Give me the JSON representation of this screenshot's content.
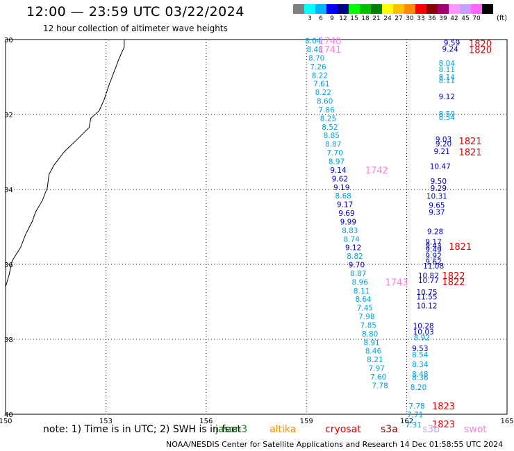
{
  "header": {
    "title": "12:00 — 23:59 UTC 03/22/2024",
    "subtitle": "12 hour collection of altimeter wave heights"
  },
  "colorbar": {
    "colors": [
      "#808080",
      "#00ffff",
      "#00b4ff",
      "#0000ff",
      "#00008b",
      "#00ff00",
      "#00c000",
      "#008000",
      "#ffff00",
      "#ffc000",
      "#ff8c00",
      "#ff0000",
      "#8b0000",
      "#a0006e",
      "#ff96ff",
      "#c8a0ff",
      "#ff64ff",
      "#000000"
    ],
    "labels": [
      "",
      "3",
      "6",
      "9",
      "12",
      "15",
      "18",
      "21",
      "24",
      "27",
      "30",
      "33",
      "36",
      "39",
      "42",
      "45",
      "70",
      ""
    ],
    "unit": "(ft)"
  },
  "map": {
    "lon_range": [
      150,
      165
    ],
    "lat_range": [
      -40,
      -30
    ],
    "x_ticks": [
      "150",
      "153",
      "156",
      "159",
      "162",
      "165"
    ],
    "y_ticks": [
      "30",
      "32",
      "34",
      "36",
      "38",
      "40"
    ],
    "grid": "dotted",
    "colors": {
      "track_west": "#00a0e0",
      "track_east": "#0000c8",
      "time_pink": "#ff80dc",
      "time_red": "#e00000"
    }
  },
  "track_west": [
    {
      "lon": 159.2,
      "lat": -30.03,
      "v": "8.04",
      "c": "c"
    },
    {
      "lon": 159.25,
      "lat": -30.26,
      "v": "8.48",
      "c": "c"
    },
    {
      "lon": 159.3,
      "lat": -30.49,
      "v": "8.70",
      "c": "c"
    },
    {
      "lon": 159.35,
      "lat": -30.72,
      "v": "7.26",
      "c": "c"
    },
    {
      "lon": 159.4,
      "lat": -30.95,
      "v": "8.22",
      "c": "c"
    },
    {
      "lon": 159.45,
      "lat": -31.18,
      "v": "7.61",
      "c": "c"
    },
    {
      "lon": 159.5,
      "lat": -31.41,
      "v": "8.22",
      "c": "c"
    },
    {
      "lon": 159.55,
      "lat": -31.64,
      "v": "8.60",
      "c": "c"
    },
    {
      "lon": 159.6,
      "lat": -31.87,
      "v": "7.86",
      "c": "c"
    },
    {
      "lon": 159.65,
      "lat": -32.1,
      "v": "8.25",
      "c": "c"
    },
    {
      "lon": 159.7,
      "lat": -32.33,
      "v": "8.52",
      "c": "c"
    },
    {
      "lon": 159.75,
      "lat": -32.56,
      "v": "8.85",
      "c": "c"
    },
    {
      "lon": 159.8,
      "lat": -32.79,
      "v": "8.87",
      "c": "c"
    },
    {
      "lon": 159.85,
      "lat": -33.02,
      "v": "7.70",
      "c": "c"
    },
    {
      "lon": 159.9,
      "lat": -33.25,
      "v": "8.97",
      "c": "c"
    },
    {
      "lon": 159.95,
      "lat": -33.48,
      "v": "9.14",
      "c": "b"
    },
    {
      "lon": 160.0,
      "lat": -33.71,
      "v": "9.62",
      "c": "b"
    },
    {
      "lon": 160.05,
      "lat": -33.94,
      "v": "9.19",
      "c": "b"
    },
    {
      "lon": 160.1,
      "lat": -34.17,
      "v": "8.68",
      "c": "c"
    },
    {
      "lon": 160.15,
      "lat": -34.4,
      "v": "9.17",
      "c": "b"
    },
    {
      "lon": 160.2,
      "lat": -34.63,
      "v": "9.69",
      "c": "b"
    },
    {
      "lon": 160.25,
      "lat": -34.86,
      "v": "9.99",
      "c": "b"
    },
    {
      "lon": 160.3,
      "lat": -35.09,
      "v": "8.83",
      "c": "c"
    },
    {
      "lon": 160.35,
      "lat": -35.32,
      "v": "8.74",
      "c": "c"
    },
    {
      "lon": 160.4,
      "lat": -35.55,
      "v": "9.12",
      "c": "b"
    },
    {
      "lon": 160.45,
      "lat": -35.78,
      "v": "8.82",
      "c": "c"
    },
    {
      "lon": 160.5,
      "lat": -36.01,
      "v": "9.70",
      "c": "b"
    },
    {
      "lon": 160.55,
      "lat": -36.24,
      "v": "8.87",
      "c": "c"
    },
    {
      "lon": 160.6,
      "lat": -36.47,
      "v": "8.96",
      "c": "c"
    },
    {
      "lon": 160.65,
      "lat": -36.7,
      "v": "8.11",
      "c": "c"
    },
    {
      "lon": 160.7,
      "lat": -36.93,
      "v": "8.64",
      "c": "c"
    },
    {
      "lon": 160.75,
      "lat": -37.16,
      "v": "7.45",
      "c": "c"
    },
    {
      "lon": 160.8,
      "lat": -37.39,
      "v": "7.98",
      "c": "c"
    },
    {
      "lon": 160.85,
      "lat": -37.62,
      "v": "7.85",
      "c": "c"
    },
    {
      "lon": 160.9,
      "lat": -37.85,
      "v": "8.80",
      "c": "c"
    },
    {
      "lon": 160.95,
      "lat": -38.08,
      "v": "8.91",
      "c": "c"
    },
    {
      "lon": 161.0,
      "lat": -38.31,
      "v": "8.46",
      "c": "c"
    },
    {
      "lon": 161.05,
      "lat": -38.54,
      "v": "8.21",
      "c": "c"
    },
    {
      "lon": 161.1,
      "lat": -38.77,
      "v": "7.97",
      "c": "c"
    },
    {
      "lon": 161.15,
      "lat": -39.0,
      "v": "7.60",
      "c": "c"
    },
    {
      "lon": 161.2,
      "lat": -39.23,
      "v": "7.78",
      "c": "c"
    }
  ],
  "track_east": [
    {
      "lon": 163.35,
      "lat": -30.08,
      "v": "9.59",
      "c": "b"
    },
    {
      "lon": 163.3,
      "lat": -30.25,
      "v": "9.24",
      "c": "b"
    },
    {
      "lon": 163.2,
      "lat": -30.63,
      "v": "8.04",
      "c": "c"
    },
    {
      "lon": 163.2,
      "lat": -30.8,
      "v": "8.11",
      "c": "c"
    },
    {
      "lon": 163.2,
      "lat": -31.0,
      "v": "8.14",
      "c": "c"
    },
    {
      "lon": 163.2,
      "lat": -31.08,
      "v": "8.11",
      "c": "c"
    },
    {
      "lon": 163.2,
      "lat": -31.52,
      "v": "9.12",
      "c": "b"
    },
    {
      "lon": 163.2,
      "lat": -31.98,
      "v": "8.59",
      "c": "c"
    },
    {
      "lon": 163.2,
      "lat": -32.07,
      "v": "8.54",
      "c": "c"
    },
    {
      "lon": 163.1,
      "lat": -32.66,
      "v": "9.03",
      "c": "b"
    },
    {
      "lon": 163.1,
      "lat": -32.78,
      "v": "9.20",
      "c": "b"
    },
    {
      "lon": 163.05,
      "lat": -32.98,
      "v": "9.21",
      "c": "b"
    },
    {
      "lon": 163.0,
      "lat": -33.38,
      "v": "10.47",
      "c": "b"
    },
    {
      "lon": 162.95,
      "lat": -33.78,
      "v": "9.50",
      "c": "b"
    },
    {
      "lon": 162.95,
      "lat": -33.96,
      "v": "9.29",
      "c": "b"
    },
    {
      "lon": 162.9,
      "lat": -34.18,
      "v": "10.31",
      "c": "b"
    },
    {
      "lon": 162.9,
      "lat": -34.42,
      "v": "9.65",
      "c": "b"
    },
    {
      "lon": 162.9,
      "lat": -34.6,
      "v": "9.37",
      "c": "b"
    },
    {
      "lon": 162.85,
      "lat": -35.12,
      "v": "9.28",
      "c": "b"
    },
    {
      "lon": 162.8,
      "lat": -35.4,
      "v": "9.17",
      "c": "b"
    },
    {
      "lon": 162.8,
      "lat": -35.5,
      "v": "9.43",
      "c": "b"
    },
    {
      "lon": 162.8,
      "lat": -35.6,
      "v": "9.49",
      "c": "b"
    },
    {
      "lon": 162.8,
      "lat": -35.77,
      "v": "9.92",
      "c": "b"
    },
    {
      "lon": 162.8,
      "lat": -35.93,
      "v": "9.62",
      "c": "b"
    },
    {
      "lon": 162.8,
      "lat": -36.04,
      "v": "11.08",
      "c": "b"
    },
    {
      "lon": 162.65,
      "lat": -36.3,
      "v": "10.82",
      "c": "b"
    },
    {
      "lon": 162.65,
      "lat": -36.43,
      "v": "10.77",
      "c": "b"
    },
    {
      "lon": 162.6,
      "lat": -36.74,
      "v": "10.75",
      "c": "b"
    },
    {
      "lon": 162.6,
      "lat": -36.86,
      "v": "11.55",
      "c": "b"
    },
    {
      "lon": 162.6,
      "lat": -37.1,
      "v": "10.12",
      "c": "b"
    },
    {
      "lon": 162.5,
      "lat": -37.64,
      "v": "10.28",
      "c": "b"
    },
    {
      "lon": 162.5,
      "lat": -37.8,
      "v": "10.03",
      "c": "b"
    },
    {
      "lon": 162.45,
      "lat": -37.95,
      "v": "8.92",
      "c": "c"
    },
    {
      "lon": 162.4,
      "lat": -38.24,
      "v": "9.53",
      "c": "b"
    },
    {
      "lon": 162.4,
      "lat": -38.41,
      "v": "8.54",
      "c": "c"
    },
    {
      "lon": 162.4,
      "lat": -38.67,
      "v": "8.34",
      "c": "c"
    },
    {
      "lon": 162.4,
      "lat": -38.93,
      "v": "8.48",
      "c": "c"
    },
    {
      "lon": 162.4,
      "lat": -39.02,
      "v": "8.36",
      "c": "c"
    },
    {
      "lon": 162.35,
      "lat": -39.28,
      "v": "8.20",
      "c": "c"
    },
    {
      "lon": 162.3,
      "lat": -39.78,
      "v": "7.78",
      "c": "c"
    },
    {
      "lon": 162.25,
      "lat": -40.01,
      "v": "7.71",
      "c": "c"
    },
    {
      "lon": 162.2,
      "lat": -40.28,
      "v": "7.31",
      "c": "c"
    }
  ],
  "time_labels": [
    {
      "lon": 159.7,
      "lat": -30.03,
      "t": "1740",
      "c": "p"
    },
    {
      "lon": 159.7,
      "lat": -30.26,
      "t": "1741",
      "c": "p"
    },
    {
      "lon": 161.1,
      "lat": -33.48,
      "t": "1742",
      "c": "p"
    },
    {
      "lon": 161.7,
      "lat": -36.47,
      "t": "1743",
      "c": "p"
    },
    {
      "lon": 164.2,
      "lat": -30.1,
      "t": "1820",
      "c": "r"
    },
    {
      "lon": 164.2,
      "lat": -30.27,
      "t": "1820",
      "c": "r"
    },
    {
      "lon": 163.9,
      "lat": -32.7,
      "t": "1821",
      "c": "r"
    },
    {
      "lon": 163.9,
      "lat": -33.0,
      "t": "1821",
      "c": "r"
    },
    {
      "lon": 163.6,
      "lat": -35.52,
      "t": "1821",
      "c": "r"
    },
    {
      "lon": 163.4,
      "lat": -36.3,
      "t": "1822",
      "c": "r"
    },
    {
      "lon": 163.4,
      "lat": -36.46,
      "t": "1822",
      "c": "r"
    },
    {
      "lon": 163.1,
      "lat": -39.78,
      "t": "1823",
      "c": "r"
    },
    {
      "lon": 163.1,
      "lat": -40.26,
      "t": "1823",
      "c": "r"
    }
  ],
  "note": "note:  1) Time is in UTC; 2) SWH is in feet",
  "legend": [
    {
      "label": "jason3",
      "color": "#208020"
    },
    {
      "label": "altika",
      "color": "#ff8c00"
    },
    {
      "label": "cryosat",
      "color": "#e00000"
    },
    {
      "label": "s3a",
      "color": "#8b0000"
    },
    {
      "label": "s3b",
      "color": "#c8a0ff"
    },
    {
      "label": "swot",
      "color": "#ff80dc"
    }
  ],
  "footer": "NOAA/NESDIS Center for Satellite Applications and Research    14 Dec 01:58:55 UTC 2024"
}
